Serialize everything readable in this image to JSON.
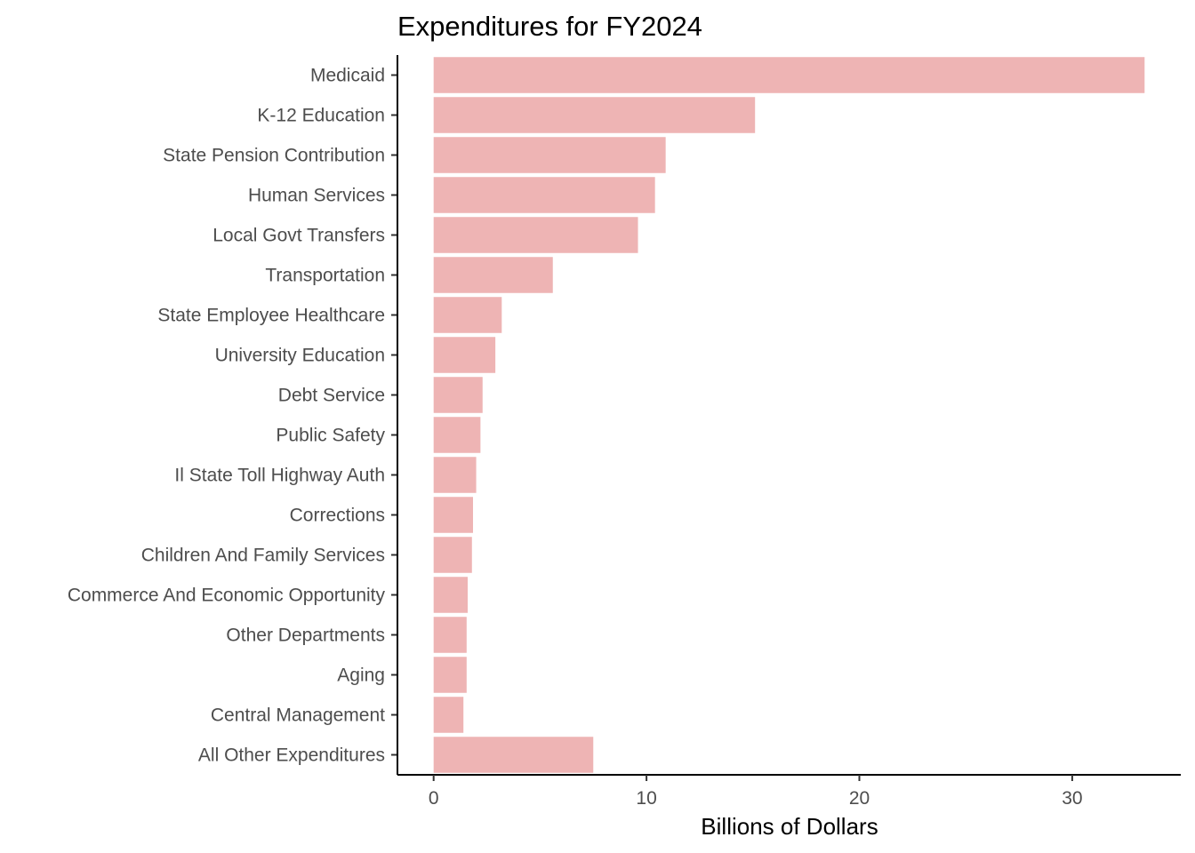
{
  "chart_data": {
    "type": "bar",
    "orientation": "horizontal",
    "title": "Expenditures for FY2024",
    "xlabel": "Billions of Dollars",
    "ylabel": "",
    "categories": [
      "Medicaid",
      "K-12 Education",
      "State Pension Contribution",
      "Human Services",
      "Local Govt Transfers",
      "Transportation",
      "State Employee Healthcare",
      "University Education",
      "Debt Service",
      "Public Safety",
      "Il State Toll Highway Auth",
      "Corrections",
      "Children And Family Services",
      "Commerce And Economic Opportunity",
      "Other Departments",
      "Aging",
      "Central Management",
      "All Other Expenditures"
    ],
    "values": [
      33.4,
      15.1,
      10.9,
      10.4,
      9.6,
      5.6,
      3.2,
      2.9,
      2.3,
      2.2,
      2.0,
      1.85,
      1.8,
      1.6,
      1.55,
      1.55,
      1.4,
      7.5
    ],
    "xlim": [
      -1.7,
      35.1
    ],
    "xticks": [
      0,
      10,
      20,
      30
    ],
    "grid": false,
    "legend": "none",
    "bar_color": "#eeb4b4"
  }
}
